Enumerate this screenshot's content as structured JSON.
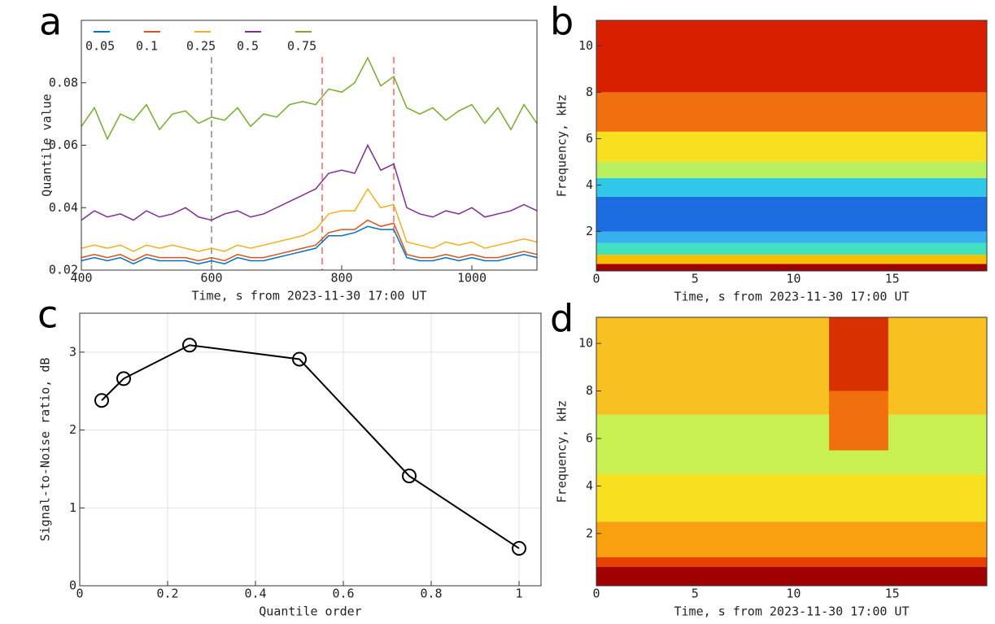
{
  "chart_data": [
    {
      "type": "line",
      "panel": "a",
      "xlabel": "Time, s from  2023-11-30 17:00 UT",
      "ylabel": "Quantile value",
      "xlim": [
        400,
        1100
      ],
      "xticks": [
        400,
        600,
        800,
        1000
      ],
      "ylim": [
        0.02,
        0.1
      ],
      "yticks": [
        0.02,
        0.04,
        0.06,
        0.08
      ],
      "grid": false,
      "legend": "top",
      "x": [
        400,
        420,
        440,
        460,
        480,
        500,
        520,
        540,
        560,
        580,
        600,
        620,
        640,
        660,
        680,
        700,
        720,
        740,
        760,
        780,
        800,
        820,
        840,
        860,
        880,
        900,
        920,
        940,
        960,
        980,
        1000,
        1020,
        1040,
        1060,
        1080,
        1100
      ],
      "series": [
        {
          "name": "0.05",
          "color": "#0072bd",
          "values": [
            0.023,
            0.024,
            0.023,
            0.024,
            0.022,
            0.024,
            0.023,
            0.023,
            0.023,
            0.022,
            0.023,
            0.022,
            0.024,
            0.023,
            0.023,
            0.024,
            0.025,
            0.026,
            0.027,
            0.031,
            0.031,
            0.032,
            0.034,
            0.033,
            0.033,
            0.024,
            0.023,
            0.023,
            0.024,
            0.023,
            0.024,
            0.023,
            0.023,
            0.024,
            0.025,
            0.024
          ]
        },
        {
          "name": "0.1",
          "color": "#d95319",
          "values": [
            0.024,
            0.025,
            0.024,
            0.025,
            0.023,
            0.025,
            0.024,
            0.024,
            0.024,
            0.023,
            0.024,
            0.023,
            0.025,
            0.024,
            0.024,
            0.025,
            0.026,
            0.027,
            0.028,
            0.032,
            0.033,
            0.033,
            0.036,
            0.034,
            0.035,
            0.025,
            0.024,
            0.024,
            0.025,
            0.024,
            0.025,
            0.024,
            0.024,
            0.025,
            0.026,
            0.025
          ]
        },
        {
          "name": "0.25",
          "color": "#edb120",
          "values": [
            0.027,
            0.028,
            0.027,
            0.028,
            0.026,
            0.028,
            0.027,
            0.028,
            0.027,
            0.026,
            0.027,
            0.026,
            0.028,
            0.027,
            0.028,
            0.029,
            0.03,
            0.031,
            0.033,
            0.038,
            0.039,
            0.039,
            0.046,
            0.04,
            0.041,
            0.029,
            0.028,
            0.027,
            0.029,
            0.028,
            0.029,
            0.027,
            0.028,
            0.029,
            0.03,
            0.029
          ]
        },
        {
          "name": "0.5",
          "color": "#7e2f8e",
          "values": [
            0.036,
            0.039,
            0.037,
            0.038,
            0.036,
            0.039,
            0.037,
            0.038,
            0.04,
            0.037,
            0.036,
            0.038,
            0.039,
            0.037,
            0.038,
            0.04,
            0.042,
            0.044,
            0.046,
            0.051,
            0.052,
            0.051,
            0.06,
            0.052,
            0.054,
            0.04,
            0.038,
            0.037,
            0.039,
            0.038,
            0.04,
            0.037,
            0.038,
            0.039,
            0.041,
            0.039
          ]
        },
        {
          "name": "0.75",
          "color": "#77ac30",
          "values": [
            0.066,
            0.072,
            0.062,
            0.07,
            0.068,
            0.073,
            0.065,
            0.07,
            0.071,
            0.067,
            0.069,
            0.068,
            0.072,
            0.066,
            0.07,
            0.069,
            0.073,
            0.074,
            0.073,
            0.078,
            0.077,
            0.08,
            0.088,
            0.079,
            0.082,
            0.072,
            0.07,
            0.072,
            0.068,
            0.071,
            0.073,
            0.067,
            0.072,
            0.065,
            0.073,
            0.067
          ]
        }
      ],
      "vlines": [
        {
          "x": 600,
          "color": "#888888"
        },
        {
          "x": 770,
          "color": "#ff6666"
        },
        {
          "x": 880,
          "color": "#ff6666"
        }
      ]
    },
    {
      "type": "spectrogram",
      "panel": "b",
      "xlabel": "Time, s from  2023-11-30 17:00 UT",
      "ylabel": "Frequency, kHz",
      "xlim": [
        0,
        19.8
      ],
      "xticks": [
        0,
        5,
        10,
        15
      ],
      "ylim": [
        0.3,
        11.1
      ],
      "yticks": [
        2,
        4,
        6,
        8,
        10
      ],
      "cells": [
        {
          "x": [
            0,
            19.8
          ],
          "y": [
            0.3,
            0.6
          ],
          "color": "#a00000"
        },
        {
          "x": [
            0,
            19.8
          ],
          "y": [
            0.6,
            1.0
          ],
          "color": "#f6c000"
        },
        {
          "x": [
            0,
            19.8
          ],
          "y": [
            1.0,
            1.5
          ],
          "color": "#40e0c0"
        },
        {
          "x": [
            0,
            19.8
          ],
          "y": [
            1.5,
            2.0
          ],
          "color": "#38b0f0"
        },
        {
          "x": [
            0,
            19.8
          ],
          "y": [
            2.0,
            3.5
          ],
          "color": "#1c6ee0"
        },
        {
          "x": [
            0,
            19.8
          ],
          "y": [
            3.5,
            4.3
          ],
          "color": "#30c8e8"
        },
        {
          "x": [
            0,
            19.8
          ],
          "y": [
            4.3,
            5.0
          ],
          "color": "#b8f060"
        },
        {
          "x": [
            0,
            19.8
          ],
          "y": [
            5.0,
            6.3
          ],
          "color": "#f8e020"
        },
        {
          "x": [
            0,
            19.8
          ],
          "y": [
            6.3,
            8.0
          ],
          "color": "#f07010"
        },
        {
          "x": [
            0,
            19.8
          ],
          "y": [
            8.0,
            11.1
          ],
          "color": "#d82000"
        }
      ]
    },
    {
      "type": "line",
      "panel": "c",
      "xlabel": "Quantile order",
      "ylabel": "Signal-to-Noise ratio, dB",
      "xlim": [
        0,
        1.05
      ],
      "xticks": [
        0,
        0.2,
        0.4,
        0.6,
        0.8,
        1
      ],
      "ylim": [
        0,
        3.5
      ],
      "yticks": [
        0,
        1,
        2,
        3
      ],
      "grid": true,
      "marker": "circle",
      "x": [
        0.05,
        0.1,
        0.25,
        0.5,
        0.75,
        1
      ],
      "series": [
        {
          "color": "#000000",
          "values": [
            2.38,
            2.66,
            3.09,
            2.91,
            1.41,
            0.48
          ]
        }
      ]
    },
    {
      "type": "spectrogram",
      "panel": "d",
      "xlabel": "Time, s from  2023-11-30 17:00 UT",
      "ylabel": "Frequency, kHz",
      "xlim": [
        0,
        19.8
      ],
      "xticks": [
        0,
        5,
        10,
        15
      ],
      "ylim": [
        -0.2,
        11.1
      ],
      "yticks": [
        2,
        4,
        6,
        8,
        10
      ],
      "cells": [
        {
          "x": [
            0,
            19.8
          ],
          "y": [
            -0.2,
            0.6
          ],
          "color": "#a00000"
        },
        {
          "x": [
            0,
            19.8
          ],
          "y": [
            0.6,
            1.0
          ],
          "color": "#e84000"
        },
        {
          "x": [
            0,
            19.8
          ],
          "y": [
            1.0,
            2.5
          ],
          "color": "#f8a010"
        },
        {
          "x": [
            0,
            19.8
          ],
          "y": [
            2.5,
            4.5
          ],
          "color": "#f8e020"
        },
        {
          "x": [
            0,
            19.8
          ],
          "y": [
            4.5,
            7.0
          ],
          "color": "#c8f050"
        },
        {
          "x": [
            0,
            19.8
          ],
          "y": [
            7.0,
            11.1
          ],
          "color": "#f8c020"
        },
        {
          "x": [
            11.8,
            14.8
          ],
          "y": [
            5.5,
            8.0
          ],
          "color": "#f07010"
        },
        {
          "x": [
            11.8,
            14.8
          ],
          "y": [
            8.0,
            11.1
          ],
          "color": "#d83000"
        }
      ]
    }
  ]
}
